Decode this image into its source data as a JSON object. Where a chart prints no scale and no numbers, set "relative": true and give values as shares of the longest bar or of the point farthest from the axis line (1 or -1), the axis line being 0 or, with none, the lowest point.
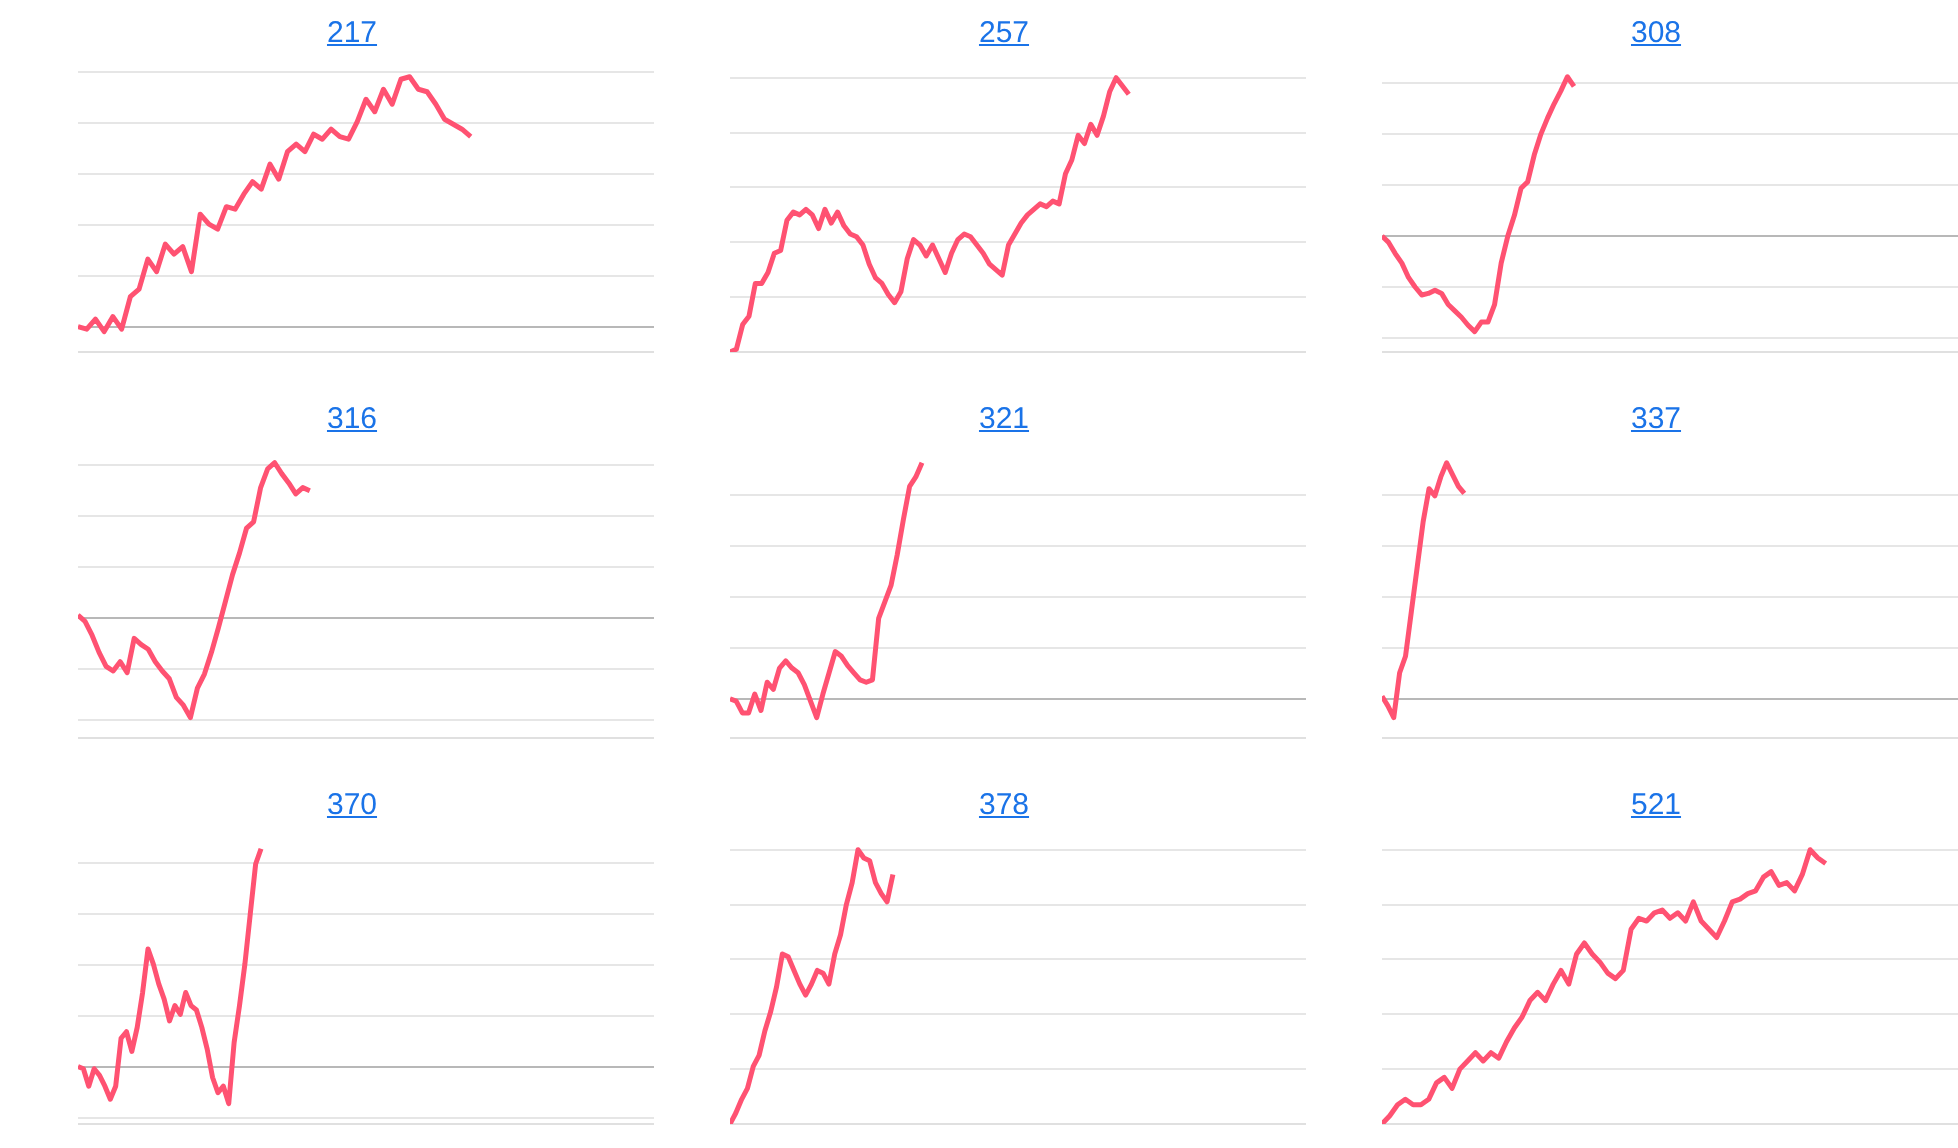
{
  "chart_data": [
    {
      "type": "line",
      "title": "217",
      "relative": true,
      "grid": true,
      "categories": [
        null,
        null,
        null,
        null,
        null,
        null,
        null,
        null,
        null,
        null,
        null,
        null,
        null,
        null,
        null,
        null,
        null,
        null,
        null,
        null,
        null,
        null,
        null,
        null,
        null,
        null,
        null,
        null,
        null,
        null,
        null,
        null,
        null,
        null,
        null,
        null,
        null,
        null,
        null,
        null,
        null,
        null,
        null,
        null,
        null,
        null,
        null,
        null,
        null,
        null,
        null,
        null,
        null,
        null,
        null,
        null,
        null,
        null,
        null,
        null,
        null,
        null,
        null,
        null,
        null,
        null,
        null
      ],
      "series": [
        {
          "color": "#ff5272",
          "values": [
            0,
            -0.01,
            0.03,
            -0.02,
            0.04,
            -0.01,
            0.12,
            0.15,
            0.27,
            0.22,
            0.33,
            0.29,
            0.32,
            0.22,
            0.45,
            0.41,
            0.39,
            0.48,
            0.47,
            0.53,
            0.58,
            0.55,
            0.65,
            0.59,
            0.7,
            0.73,
            0.7,
            0.77,
            0.75,
            0.79,
            0.76,
            0.75,
            0.82,
            0.91,
            0.86,
            0.95,
            0.89,
            0.99,
            1,
            0.95,
            0.94,
            0.89,
            0.83,
            0.81,
            0.79,
            0.76,
            null,
            null,
            null,
            null,
            null,
            null,
            null,
            null,
            null,
            null,
            null,
            null,
            null,
            null,
            null,
            null,
            null,
            null,
            null,
            null,
            null
          ]
        }
      ]
    },
    {
      "type": "line",
      "title": "257",
      "relative": true,
      "grid": true,
      "categories": [
        null,
        null,
        null,
        null,
        null,
        null,
        null,
        null,
        null,
        null,
        null,
        null,
        null,
        null,
        null,
        null,
        null,
        null,
        null,
        null,
        null,
        null,
        null,
        null,
        null,
        null,
        null,
        null,
        null,
        null,
        null,
        null,
        null,
        null,
        null,
        null,
        null,
        null,
        null,
        null,
        null,
        null,
        null,
        null,
        null,
        null,
        null,
        null,
        null,
        null,
        null,
        null,
        null,
        null,
        null,
        null,
        null,
        null,
        null,
        null,
        null,
        null,
        null,
        null,
        null,
        null,
        null,
        null,
        null,
        null,
        null,
        null,
        null,
        null,
        null,
        null,
        null,
        null,
        null,
        null,
        null,
        null,
        null,
        null,
        null,
        null,
        null,
        null,
        null,
        null,
        null,
        null
      ],
      "series": [
        {
          "color": "#ff5272",
          "values": [
            0,
            0.01,
            0.1,
            0.13,
            0.25,
            0.25,
            0.29,
            0.36,
            0.37,
            0.48,
            0.51,
            0.5,
            0.52,
            0.5,
            0.45,
            0.52,
            0.47,
            0.51,
            0.46,
            0.43,
            0.42,
            0.39,
            0.32,
            0.27,
            0.25,
            0.21,
            0.18,
            0.22,
            0.34,
            0.41,
            0.39,
            0.35,
            0.39,
            0.34,
            0.29,
            0.36,
            0.41,
            0.43,
            0.42,
            0.39,
            0.36,
            0.32,
            0.3,
            0.28,
            0.39,
            0.43,
            0.47,
            0.5,
            0.52,
            0.54,
            0.53,
            0.55,
            0.54,
            0.65,
            0.7,
            0.79,
            0.76,
            0.83,
            0.79,
            0.86,
            0.95,
            1,
            0.97,
            0.94,
            null,
            null,
            null,
            null,
            null,
            null,
            null,
            null,
            null,
            null,
            null,
            null,
            null,
            null,
            null,
            null,
            null,
            null,
            null,
            null,
            null,
            null,
            null,
            null,
            null,
            null,
            null,
            null
          ]
        }
      ]
    },
    {
      "type": "line",
      "title": "308",
      "relative": true,
      "grid": true,
      "categories": [
        null,
        null,
        null,
        null,
        null,
        null,
        null,
        null,
        null,
        null,
        null,
        null,
        null,
        null,
        null,
        null,
        null,
        null,
        null,
        null,
        null,
        null,
        null,
        null,
        null,
        null,
        null,
        null,
        null,
        null,
        null,
        null,
        null,
        null,
        null,
        null,
        null,
        null,
        null,
        null,
        null,
        null,
        null,
        null,
        null,
        null,
        null,
        null,
        null,
        null,
        null,
        null,
        null,
        null,
        null,
        null,
        null,
        null,
        null,
        null,
        null,
        null,
        null,
        null,
        null,
        null,
        null,
        null,
        null,
        null,
        null,
        null,
        null,
        null,
        null,
        null,
        null,
        null,
        null,
        null,
        null,
        null,
        null,
        null,
        null,
        null,
        null,
        null
      ],
      "series": [
        {
          "color": "#ff5272",
          "values": [
            0,
            -0.04,
            -0.11,
            -0.17,
            -0.26,
            -0.32,
            -0.37,
            -0.36,
            -0.34,
            -0.36,
            -0.43,
            -0.47,
            -0.51,
            -0.56,
            -0.6,
            -0.54,
            -0.54,
            -0.43,
            -0.17,
            0,
            0.13,
            0.3,
            0.34,
            0.51,
            0.64,
            0.74,
            0.83,
            0.91,
            1,
            0.94,
            null,
            null,
            null,
            null,
            null,
            null,
            null,
            null,
            null,
            null,
            null,
            null,
            null,
            null,
            null,
            null,
            null,
            null,
            null,
            null,
            null,
            null,
            null,
            null,
            null,
            null,
            null,
            null,
            null,
            null,
            null,
            null,
            null,
            null,
            null,
            null,
            null,
            null,
            null,
            null,
            null,
            null,
            null,
            null,
            null,
            null,
            null,
            null,
            null,
            null,
            null,
            null,
            null,
            null,
            null,
            null,
            null,
            null
          ]
        }
      ]
    },
    {
      "type": "line",
      "title": "316",
      "relative": true,
      "grid": true,
      "categories": [
        null,
        null,
        null,
        null,
        null,
        null,
        null,
        null,
        null,
        null,
        null,
        null,
        null,
        null,
        null,
        null,
        null,
        null,
        null,
        null,
        null,
        null,
        null,
        null,
        null,
        null,
        null,
        null,
        null,
        null,
        null,
        null,
        null,
        null,
        null,
        null,
        null,
        null,
        null,
        null,
        null,
        null,
        null,
        null,
        null,
        null,
        null,
        null,
        null,
        null,
        null,
        null,
        null,
        null,
        null,
        null,
        null,
        null,
        null,
        null,
        null,
        null,
        null,
        null,
        null,
        null,
        null,
        null,
        null,
        null,
        null,
        null,
        null,
        null,
        null,
        null,
        null,
        null,
        null,
        null,
        null,
        null,
        null
      ],
      "series": [
        {
          "color": "#ff5272",
          "values": [
            0.02,
            -0.02,
            -0.11,
            -0.22,
            -0.31,
            -0.34,
            -0.28,
            -0.35,
            -0.13,
            -0.17,
            -0.2,
            -0.28,
            -0.34,
            -0.39,
            -0.51,
            -0.56,
            -0.64,
            -0.45,
            -0.36,
            -0.22,
            -0.06,
            0.11,
            0.28,
            0.42,
            0.58,
            0.62,
            0.84,
            0.96,
            1,
            0.93,
            0.87,
            0.8,
            0.84,
            0.82,
            null,
            null,
            null,
            null,
            null,
            null,
            null,
            null,
            null,
            null,
            null,
            null,
            null,
            null,
            null,
            null,
            null,
            null,
            null,
            null,
            null,
            null,
            null,
            null,
            null,
            null,
            null,
            null,
            null,
            null,
            null,
            null,
            null,
            null,
            null,
            null,
            null,
            null,
            null,
            null,
            null,
            null,
            null,
            null,
            null,
            null,
            null,
            null,
            null
          ]
        }
      ]
    },
    {
      "type": "line",
      "title": "321",
      "relative": true,
      "grid": true,
      "categories": [
        null,
        null,
        null,
        null,
        null,
        null,
        null,
        null,
        null,
        null,
        null,
        null,
        null,
        null,
        null,
        null,
        null,
        null,
        null,
        null,
        null,
        null,
        null,
        null,
        null,
        null,
        null,
        null,
        null,
        null,
        null,
        null,
        null,
        null,
        null,
        null,
        null,
        null,
        null,
        null,
        null,
        null,
        null,
        null,
        null,
        null,
        null,
        null,
        null,
        null,
        null,
        null,
        null,
        null,
        null,
        null,
        null,
        null,
        null,
        null,
        null,
        null,
        null,
        null,
        null,
        null,
        null,
        null,
        null,
        null,
        null,
        null,
        null,
        null,
        null,
        null,
        null,
        null,
        null,
        null,
        null,
        null,
        null,
        null,
        null,
        null,
        null,
        null,
        null,
        null,
        null,
        null,
        null,
        null
      ],
      "series": [
        {
          "color": "#ff5272",
          "values": [
            0,
            -0.01,
            -0.06,
            -0.06,
            0.02,
            -0.05,
            0.07,
            0.04,
            0.13,
            0.16,
            0.13,
            0.11,
            0.06,
            -0.01,
            -0.08,
            0.02,
            0.11,
            0.2,
            0.18,
            0.14,
            0.11,
            0.08,
            0.07,
            0.08,
            0.34,
            0.41,
            0.48,
            0.61,
            0.76,
            0.9,
            0.94,
            1,
            null,
            null,
            null,
            null,
            null,
            null,
            null,
            null,
            null,
            null,
            null,
            null,
            null,
            null,
            null,
            null,
            null,
            null,
            null,
            null,
            null,
            null,
            null,
            null,
            null,
            null,
            null,
            null,
            null,
            null,
            null,
            null,
            null,
            null,
            null,
            null,
            null,
            null,
            null,
            null,
            null,
            null,
            null,
            null,
            null,
            null,
            null,
            null,
            null,
            null,
            null,
            null,
            null,
            null,
            null,
            null,
            null,
            null,
            null,
            null,
            null,
            null
          ]
        }
      ]
    },
    {
      "type": "line",
      "title": "337",
      "relative": true,
      "grid": true,
      "categories": [
        null,
        null,
        null,
        null,
        null,
        null,
        null,
        null,
        null,
        null,
        null,
        null,
        null,
        null,
        null,
        null,
        null,
        null,
        null,
        null,
        null,
        null,
        null,
        null,
        null,
        null,
        null,
        null,
        null,
        null,
        null,
        null,
        null,
        null,
        null,
        null,
        null,
        null,
        null,
        null,
        null,
        null,
        null,
        null,
        null,
        null,
        null,
        null,
        null,
        null,
        null,
        null,
        null,
        null,
        null,
        null,
        null,
        null,
        null,
        null,
        null,
        null,
        null,
        null,
        null,
        null,
        null,
        null,
        null,
        null,
        null,
        null,
        null,
        null,
        null,
        null,
        null,
        null,
        null,
        null,
        null,
        null,
        null,
        null,
        null,
        null,
        null,
        null,
        null,
        null,
        null,
        null,
        null,
        null,
        null,
        null,
        null,
        null,
        null
      ],
      "series": [
        {
          "color": "#ff5272",
          "values": [
            0.01,
            -0.03,
            -0.08,
            0.11,
            0.18,
            0.37,
            0.56,
            0.75,
            0.89,
            0.86,
            0.94,
            1,
            0.95,
            0.9,
            0.87,
            null,
            null,
            null,
            null,
            null,
            null,
            null,
            null,
            null,
            null,
            null,
            null,
            null,
            null,
            null,
            null,
            null,
            null,
            null,
            null,
            null,
            null,
            null,
            null,
            null,
            null,
            null,
            null,
            null,
            null,
            null,
            null,
            null,
            null,
            null,
            null,
            null,
            null,
            null,
            null,
            null,
            null,
            null,
            null,
            null,
            null,
            null,
            null,
            null,
            null,
            null,
            null,
            null,
            null,
            null,
            null,
            null,
            null,
            null,
            null,
            null,
            null,
            null,
            null,
            null,
            null,
            null,
            null,
            null,
            null,
            null,
            null,
            null,
            null,
            null,
            null,
            null,
            null,
            null,
            null,
            null,
            null,
            null,
            null
          ]
        }
      ]
    },
    {
      "type": "line",
      "title": "370",
      "relative": true,
      "grid": true,
      "categories": [
        null,
        null,
        null,
        null,
        null,
        null,
        null,
        null,
        null,
        null,
        null,
        null,
        null,
        null,
        null,
        null,
        null,
        null,
        null,
        null,
        null,
        null,
        null,
        null,
        null,
        null,
        null,
        null,
        null,
        null,
        null,
        null,
        null,
        null,
        null,
        null,
        null,
        null,
        null,
        null,
        null,
        null,
        null,
        null,
        null,
        null,
        null,
        null,
        null,
        null,
        null,
        null,
        null,
        null,
        null,
        null,
        null,
        null,
        null,
        null,
        null,
        null,
        null,
        null,
        null,
        null,
        null,
        null,
        null,
        null,
        null,
        null,
        null,
        null,
        null,
        null,
        null,
        null,
        null,
        null,
        null,
        null,
        null,
        null,
        null,
        null,
        null,
        null,
        null,
        null,
        null,
        null,
        null,
        null,
        null,
        null,
        null,
        null,
        null,
        null,
        null,
        null,
        null,
        null,
        null,
        null,
        null,
        null
      ],
      "series": [
        {
          "color": "#ff5272",
          "values": [
            0,
            -0.01,
            -0.09,
            -0.01,
            -0.04,
            -0.09,
            -0.15,
            -0.09,
            0.13,
            0.16,
            0.07,
            0.18,
            0.34,
            0.54,
            0.47,
            0.38,
            0.31,
            0.21,
            0.28,
            0.24,
            0.34,
            0.28,
            0.26,
            0.18,
            0.08,
            -0.05,
            -0.12,
            -0.09,
            -0.17,
            0.11,
            0.28,
            0.47,
            0.7,
            0.93,
            1,
            null,
            null,
            null,
            null,
            null,
            null,
            null,
            null,
            null,
            null,
            null,
            null,
            null,
            null,
            null,
            null,
            null,
            null,
            null,
            null,
            null,
            null,
            null,
            null,
            null,
            null,
            null,
            null,
            null,
            null,
            null,
            null,
            null,
            null,
            null,
            null,
            null,
            null,
            null,
            null,
            null,
            null,
            null,
            null,
            null,
            null,
            null,
            null,
            null,
            null,
            null,
            null,
            null,
            null,
            null,
            null,
            null,
            null,
            null,
            null,
            null,
            null,
            null,
            null,
            null,
            null,
            null,
            null,
            null,
            null,
            null,
            null,
            null
          ]
        }
      ]
    },
    {
      "type": "line",
      "title": "378",
      "relative": true,
      "grid": true,
      "categories": [
        null,
        null,
        null,
        null,
        null,
        null,
        null,
        null,
        null,
        null,
        null,
        null,
        null,
        null,
        null,
        null,
        null,
        null,
        null,
        null,
        null,
        null,
        null,
        null,
        null,
        null,
        null,
        null,
        null,
        null,
        null,
        null,
        null,
        null,
        null,
        null,
        null,
        null,
        null,
        null,
        null,
        null,
        null,
        null,
        null,
        null,
        null,
        null,
        null,
        null,
        null,
        null,
        null,
        null,
        null,
        null,
        null,
        null,
        null,
        null,
        null,
        null,
        null,
        null,
        null,
        null,
        null,
        null,
        null,
        null,
        null,
        null,
        null,
        null,
        null,
        null,
        null,
        null,
        null,
        null,
        null,
        null,
        null,
        null,
        null,
        null,
        null,
        null,
        null,
        null,
        null,
        null,
        null,
        null,
        null,
        null,
        null,
        null,
        null,
        null
      ],
      "series": [
        {
          "color": "#ff5272",
          "values": [
            0,
            0.04,
            0.09,
            0.13,
            0.21,
            0.25,
            0.34,
            0.41,
            0.5,
            0.62,
            0.61,
            0.56,
            0.51,
            0.47,
            0.51,
            0.56,
            0.55,
            0.51,
            0.62,
            0.69,
            0.8,
            0.88,
            1,
            0.97,
            0.96,
            0.88,
            0.84,
            0.81,
            0.91,
            null,
            null,
            null,
            null,
            null,
            null,
            null,
            null,
            null,
            null,
            null,
            null,
            null,
            null,
            null,
            null,
            null,
            null,
            null,
            null,
            null,
            null,
            null,
            null,
            null,
            null,
            null,
            null,
            null,
            null,
            null,
            null,
            null,
            null,
            null,
            null,
            null,
            null,
            null,
            null,
            null,
            null,
            null,
            null,
            null,
            null,
            null,
            null,
            null,
            null,
            null,
            null,
            null,
            null,
            null,
            null,
            null,
            null,
            null,
            null,
            null,
            null,
            null,
            null,
            null,
            null,
            null,
            null,
            null,
            null,
            null
          ]
        }
      ]
    },
    {
      "type": "line",
      "title": "521",
      "relative": true,
      "grid": true,
      "categories": [
        null,
        null,
        null,
        null,
        null,
        null,
        null,
        null,
        null,
        null,
        null,
        null,
        null,
        null,
        null,
        null,
        null,
        null,
        null,
        null,
        null,
        null,
        null,
        null,
        null,
        null,
        null,
        null,
        null,
        null,
        null,
        null,
        null,
        null,
        null,
        null,
        null,
        null,
        null,
        null,
        null,
        null,
        null,
        null,
        null,
        null,
        null,
        null,
        null,
        null,
        null,
        null,
        null,
        null,
        null,
        null,
        null,
        null,
        null,
        null,
        null,
        null,
        null,
        null,
        null,
        null,
        null,
        null,
        null,
        null,
        null,
        null,
        null,
        null,
        null
      ],
      "series": [
        {
          "color": "#ff5272",
          "values": [
            0,
            0.03,
            0.07,
            0.09,
            0.07,
            0.07,
            0.09,
            0.15,
            0.17,
            0.13,
            0.2,
            0.23,
            0.26,
            0.23,
            0.26,
            0.24,
            0.3,
            0.35,
            0.39,
            0.45,
            0.48,
            0.45,
            0.51,
            0.56,
            0.51,
            0.62,
            0.66,
            0.62,
            0.59,
            0.55,
            0.53,
            0.56,
            0.71,
            0.75,
            0.74,
            0.77,
            0.78,
            0.75,
            0.77,
            0.74,
            0.81,
            0.74,
            0.71,
            0.68,
            0.74,
            0.81,
            0.82,
            0.84,
            0.85,
            0.9,
            0.92,
            0.87,
            0.88,
            0.85,
            0.91,
            1,
            0.97,
            0.95,
            null,
            null,
            null,
            null,
            null,
            null,
            null,
            null,
            null,
            null,
            null,
            null,
            null,
            null,
            null,
            null,
            null
          ]
        }
      ]
    }
  ]
}
